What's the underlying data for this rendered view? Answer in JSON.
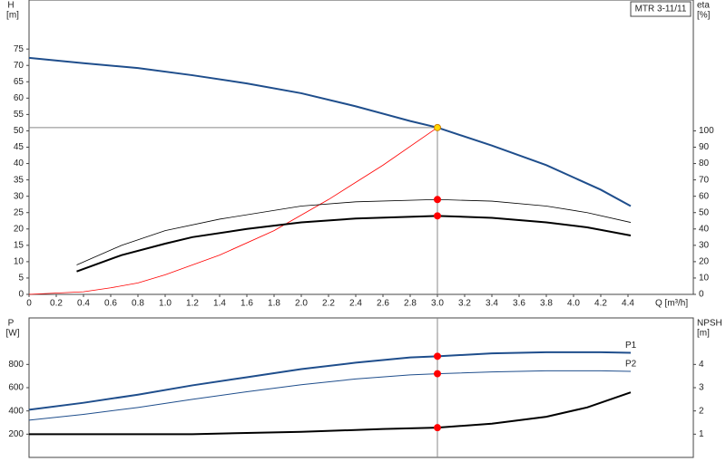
{
  "chart_data": [
    {
      "type": "line",
      "title": "MTR 3-11/11",
      "ylabel": "H",
      "yunit": "[m]",
      "y2label": "eta",
      "y2unit": "[%]",
      "xlabel": "Q [m³/h]",
      "xlim": [
        0,
        4.88
      ],
      "xticks": [
        0,
        0.2,
        0.4,
        0.6,
        0.8,
        {
          "value": 1,
          "label": "1.0"
        },
        1.2,
        1.4,
        1.6,
        1.8,
        {
          "value": 2,
          "label": "2.0"
        },
        2.2,
        2.4,
        2.6,
        2.8,
        {
          "value": 3,
          "label": "3.0"
        },
        3.2,
        3.4,
        3.6,
        3.8,
        {
          "value": 4,
          "label": "4.0"
        },
        4.2,
        4.4
      ],
      "ylim": [
        0,
        90
      ],
      "yticks": [
        0,
        5,
        10,
        15,
        20,
        25,
        30,
        35,
        40,
        45,
        50,
        55,
        60,
        65,
        70,
        75
      ],
      "y2lim": [
        0,
        180
      ],
      "y2ticks": [
        0,
        10,
        20,
        30,
        40,
        50,
        60,
        70,
        80,
        90,
        100
      ],
      "series": [
        {
          "color": "#1f4e8c",
          "width": 2,
          "x": [
            0,
            0.4,
            0.8,
            1.2,
            1.6,
            2.0,
            2.4,
            2.8,
            3.0,
            3.4,
            3.8,
            4.2,
            4.42
          ],
          "values": [
            72.3,
            70.7,
            69.2,
            67,
            64.5,
            61.5,
            57.5,
            53,
            51,
            45.5,
            39.5,
            32,
            27
          ]
        },
        {
          "color": "#ff0000",
          "width": 0.8,
          "x": [
            0,
            0.4,
            0.6,
            0.8,
            1.0,
            1.4,
            1.8,
            2.2,
            2.6,
            3.0
          ],
          "values": [
            0,
            0.8,
            2,
            3.5,
            6,
            12,
            19.5,
            29,
            39.5,
            51
          ]
        },
        {
          "color": "#000000",
          "width": 0.8,
          "axis": "y2",
          "x": [
            0.35,
            0.68,
            1.0,
            1.4,
            2.0,
            2.4,
            3.0,
            3.4,
            3.8,
            4.1,
            4.42
          ],
          "values": [
            18,
            30,
            39,
            46,
            54,
            56.6,
            58,
            57,
            54,
            50,
            44
          ]
        },
        {
          "color": "#000000",
          "width": 2,
          "axis": "y2",
          "x": [
            0.35,
            0.68,
            1.0,
            1.2,
            1.6,
            2.0,
            2.4,
            3.0,
            3.4,
            3.8,
            4.1,
            4.42
          ],
          "values": [
            14,
            24,
            31,
            35,
            40,
            44,
            46.4,
            48,
            46.8,
            44,
            41,
            36
          ]
        }
      ],
      "points": [
        {
          "x": 3,
          "y": 51,
          "color": "#ffd700"
        },
        {
          "x": 3,
          "y": 58,
          "axis": "y2",
          "color": "#ff0000"
        },
        {
          "x": 3,
          "y": 48,
          "axis": "y2",
          "color": "#ff0000"
        }
      ]
    },
    {
      "type": "line",
      "ylabel": "P",
      "yunit": "[W]",
      "y2label": "NPSH",
      "y2unit": "[m]",
      "xlim": [
        0,
        4.88
      ],
      "ylim": [
        0,
        1200
      ],
      "yticks": [
        200,
        400,
        600,
        800
      ],
      "y2lim": [
        0,
        6
      ],
      "y2ticks": [
        1,
        2,
        3,
        4
      ],
      "series": [
        {
          "name": "P1",
          "color": "#1f4e8c",
          "width": 2,
          "x": [
            0,
            0.4,
            0.8,
            1.2,
            1.6,
            2.0,
            2.4,
            2.8,
            3.0,
            3.4,
            3.8,
            4.2,
            4.42
          ],
          "values": [
            410,
            470,
            540,
            620,
            690,
            760,
            815,
            860,
            870,
            895,
            905,
            905,
            900
          ]
        },
        {
          "name": "P2",
          "color": "#1f4e8c",
          "width": 1,
          "x": [
            0,
            0.4,
            0.8,
            1.2,
            1.6,
            2.0,
            2.4,
            2.8,
            3.0,
            3.4,
            3.8,
            4.2,
            4.42
          ],
          "values": [
            320,
            370,
            430,
            500,
            565,
            625,
            675,
            710,
            720,
            735,
            745,
            745,
            740
          ]
        },
        {
          "color": "#000000",
          "width": 2,
          "axis": "y2",
          "x": [
            0,
            1.2,
            2.0,
            2.6,
            3.0,
            3.4,
            3.8,
            4.1,
            4.42
          ],
          "values": [
            1.0,
            1.0,
            1.1,
            1.22,
            1.28,
            1.45,
            1.75,
            2.15,
            2.8
          ]
        }
      ],
      "points": [
        {
          "x": 3,
          "y": 870,
          "color": "#ff0000"
        },
        {
          "x": 3,
          "y": 720,
          "color": "#ff0000"
        },
        {
          "x": 3,
          "y": 1.28,
          "axis": "y2",
          "color": "#ff0000"
        }
      ]
    }
  ]
}
